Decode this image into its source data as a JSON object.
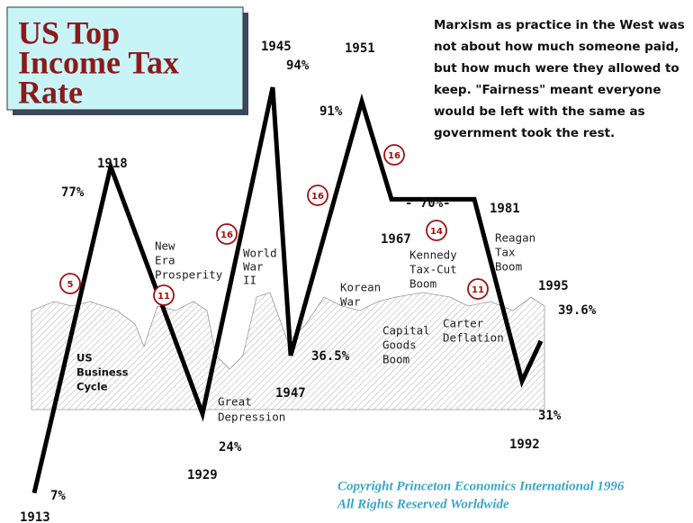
{
  "chart_data": {
    "type": "line",
    "title_lines": [
      "US Top",
      "Income Tax",
      "Rate"
    ],
    "note_lines": [
      "Marxism as practice in the West was",
      "not about how much someone paid,",
      "but how much were they allowed to",
      "keep. \"Fairness\" meant everyone",
      "would be left with the same as",
      "government took the rest."
    ],
    "categories": [
      "1913",
      "1918",
      "1929",
      "1945",
      "1947",
      "1951",
      "1967",
      "1981",
      "1992",
      "1995"
    ],
    "values": [
      7,
      77,
      24,
      94,
      36.5,
      91,
      70,
      70,
      31,
      39.6
    ],
    "value_labels": [
      "7%",
      "77%",
      "24%",
      "94%",
      "36.5%",
      "91%",
      "- 70%-",
      null,
      "31%",
      "39.6%"
    ],
    "color": "#000000",
    "ylim": [
      0,
      100
    ],
    "annotations": [
      {
        "lines": [
          "US",
          "Business",
          "Cycle"
        ]
      },
      {
        "lines": [
          "New",
          "Era",
          "Prosperity"
        ]
      },
      {
        "lines": [
          "World",
          "War",
          "II"
        ]
      },
      {
        "lines": [
          "Great",
          "Depression"
        ]
      },
      {
        "lines": [
          "Korean",
          "War"
        ]
      },
      {
        "lines": [
          "Kennedy",
          "Tax-Cut",
          "Boom"
        ]
      },
      {
        "lines": [
          "Capital",
          "Goods",
          "Boom"
        ]
      },
      {
        "lines": [
          "Carter",
          "Deflation"
        ]
      },
      {
        "lines": [
          "Reagan",
          "Tax",
          "Boom"
        ]
      }
    ],
    "cycle_marks": [
      5,
      11,
      16,
      16,
      16,
      14,
      11
    ],
    "copyright_lines": [
      "Copyright Princeton Economics International 1996",
      "All Rights Reserved Worldwide"
    ]
  }
}
